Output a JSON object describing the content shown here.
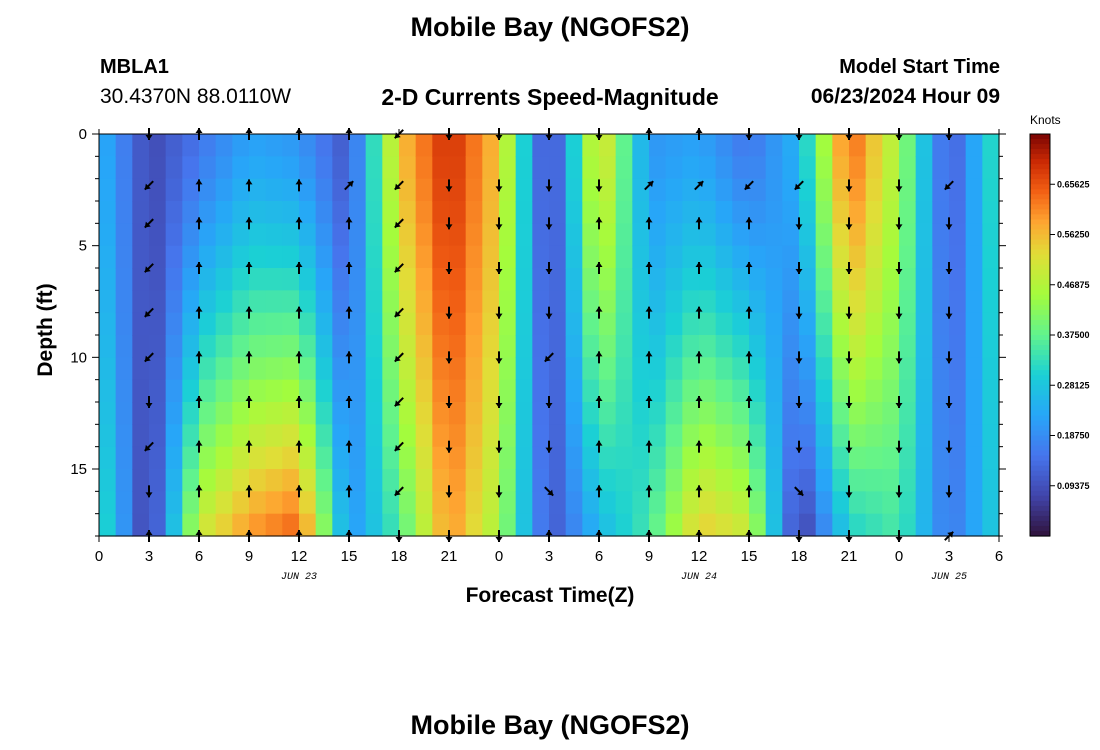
{
  "header": {
    "title": "Mobile Bay (NGOFS2)",
    "station_id": "MBLA1",
    "coordinates": "30.4370N  88.0110W",
    "subtitle": "2-D Currents Speed-Magnitude",
    "model_start_label": "Model Start Time",
    "model_start_value": "06/23/2024 Hour 09"
  },
  "footer": {
    "repeated_title": "Mobile Bay (NGOFS2)"
  },
  "chart_data": {
    "type": "heatmap",
    "title": "2-D Currents Speed-Magnitude",
    "xlabel": "Forecast Time(Z)",
    "ylabel": "Depth (ft)",
    "x_tick_labels": [
      "0",
      "3",
      "6",
      "9",
      "12",
      "15",
      "18",
      "21",
      "0",
      "3",
      "6",
      "9",
      "12",
      "15",
      "18",
      "21",
      "0",
      "3",
      "6"
    ],
    "x_hours_range": [
      0,
      54
    ],
    "date_labels": [
      {
        "text": "JUN 23",
        "hour": 12
      },
      {
        "text": "JUN 24",
        "hour": 36
      },
      {
        "text": "JUN 25",
        "hour": 51
      }
    ],
    "y_ticks": [
      0,
      5,
      10,
      15
    ],
    "ylim": [
      18,
      0
    ],
    "colorbar": {
      "label": "Knots",
      "ticks": [
        "0.65625",
        "0.56250",
        "0.46875",
        "0.37500",
        "0.28125",
        "0.18750",
        "0.09375"
      ],
      "tick_values": [
        0.65625,
        0.5625,
        0.46875,
        0.375,
        0.28125,
        0.1875,
        0.09375
      ],
      "range": [
        0,
        0.75
      ],
      "colormap": "turbo"
    },
    "arrow_depths": [
      0,
      2.3,
      4,
      6,
      8,
      10,
      12,
      14,
      16,
      18
    ],
    "arrow_columns": [
      {
        "hour": 3,
        "dir": [
          "S",
          "SW",
          "SW",
          "SW",
          "SW",
          "SW",
          "S",
          "SW",
          "S",
          "N"
        ]
      },
      {
        "hour": 6,
        "dir": [
          "N",
          "N",
          "N",
          "N",
          "N",
          "N",
          "N",
          "N",
          "N",
          "N"
        ]
      },
      {
        "hour": 9,
        "dir": [
          "N",
          "N",
          "N",
          "N",
          "N",
          "N",
          "N",
          "N",
          "N",
          "N"
        ]
      },
      {
        "hour": 12,
        "dir": [
          "N",
          "N",
          "N",
          "N",
          "N",
          "N",
          "N",
          "N",
          "N",
          "N"
        ]
      },
      {
        "hour": 15,
        "dir": [
          "N",
          "NE",
          "N",
          "N",
          "N",
          "N",
          "N",
          "N",
          "N",
          "N"
        ]
      },
      {
        "hour": 18,
        "dir": [
          "SW",
          "SW",
          "SW",
          "SW",
          "SW",
          "SW",
          "SW",
          "SW",
          "SW",
          "S"
        ]
      },
      {
        "hour": 21,
        "dir": [
          "S",
          "S",
          "S",
          "S",
          "S",
          "S",
          "S",
          "S",
          "S",
          "S"
        ]
      },
      {
        "hour": 24,
        "dir": [
          "S",
          "S",
          "S",
          "S",
          "S",
          "S",
          "S",
          "S",
          "S",
          "S"
        ]
      },
      {
        "hour": 27,
        "dir": [
          "S",
          "S",
          "S",
          "S",
          "S",
          "SW",
          "S",
          "S",
          "SE",
          "N"
        ]
      },
      {
        "hour": 30,
        "dir": [
          "S",
          "S",
          "N",
          "N",
          "N",
          "N",
          "N",
          "N",
          "N",
          "N"
        ]
      },
      {
        "hour": 33,
        "dir": [
          "N",
          "NE",
          "N",
          "N",
          "N",
          "N",
          "N",
          "N",
          "N",
          "N"
        ]
      },
      {
        "hour": 36,
        "dir": [
          "N",
          "NE",
          "N",
          "N",
          "N",
          "N",
          "N",
          "N",
          "N",
          "N"
        ]
      },
      {
        "hour": 39,
        "dir": [
          "S",
          "SW",
          "N",
          "N",
          "N",
          "N",
          "N",
          "N",
          "N",
          "N"
        ]
      },
      {
        "hour": 42,
        "dir": [
          "S",
          "SW",
          "S",
          "S",
          "S",
          "S",
          "S",
          "S",
          "SE",
          "S"
        ]
      },
      {
        "hour": 45,
        "dir": [
          "S",
          "S",
          "S",
          "S",
          "S",
          "S",
          "S",
          "S",
          "S",
          "S"
        ]
      },
      {
        "hour": 48,
        "dir": [
          "S",
          "S",
          "S",
          "S",
          "S",
          "S",
          "S",
          "S",
          "S",
          "S"
        ]
      },
      {
        "hour": 51,
        "dir": [
          "S",
          "SW",
          "S",
          "S",
          "S",
          "S",
          "S",
          "S",
          "S",
          "NE"
        ]
      }
    ],
    "speed_profile_surface": [
      0.25,
      0.08,
      0.15,
      0.22,
      0.2,
      0.1,
      0.55,
      0.7,
      0.55,
      0.05,
      0.55,
      0.2,
      0.22,
      0.15,
      0.25,
      0.65,
      0.45,
      0.1,
      0.35
    ],
    "speed_profile_bottom": [
      0.35,
      0.05,
      0.5,
      0.6,
      0.65,
      0.2,
      0.35,
      0.6,
      0.45,
      0.1,
      0.25,
      0.35,
      0.55,
      0.5,
      0.05,
      0.3,
      0.35,
      0.15,
      0.3
    ]
  }
}
